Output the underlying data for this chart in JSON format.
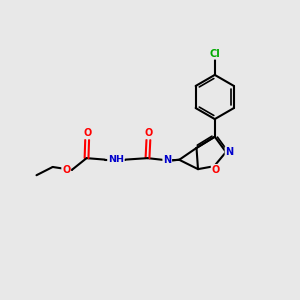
{
  "background_color": "#e8e8e8",
  "bond_color": "#000000",
  "atom_colors": {
    "O": "#ff0000",
    "N": "#0000cc",
    "Cl": "#00aa00",
    "C": "#000000",
    "H": "#000000"
  },
  "figsize": [
    3.0,
    3.0
  ],
  "dpi": 100
}
